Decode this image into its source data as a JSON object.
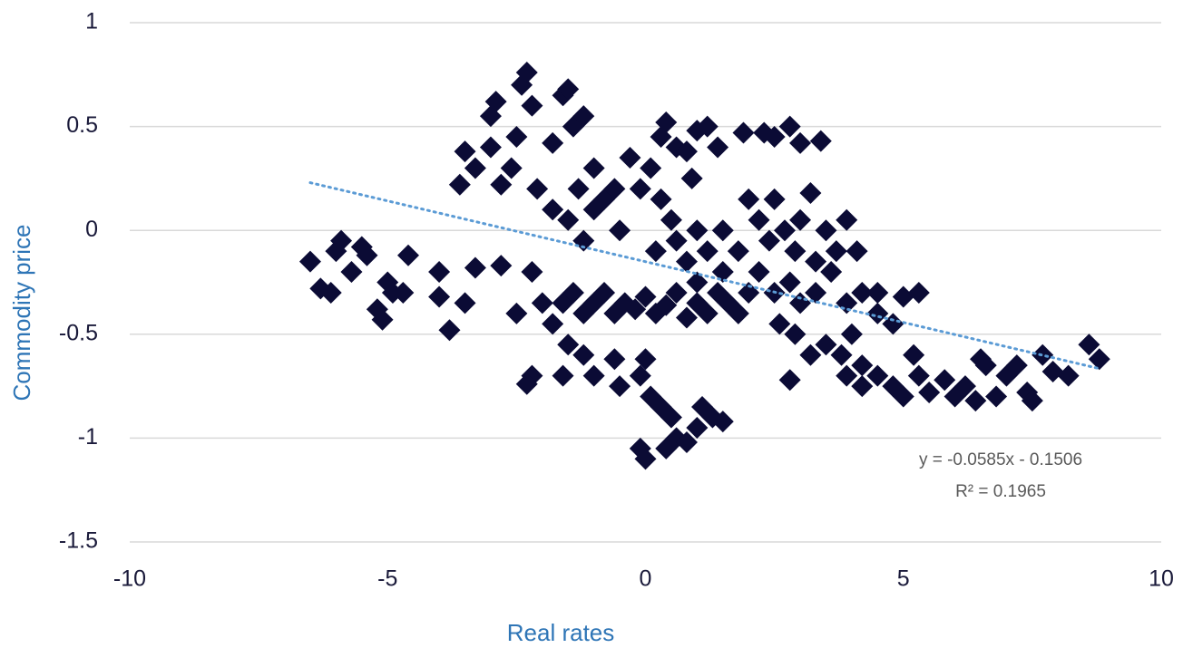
{
  "chart_data": {
    "type": "scatter",
    "x_label": "Real rates",
    "y_label": "Commodity price",
    "xlim": [
      -10,
      10
    ],
    "xticks": [
      -10,
      -5,
      0,
      5,
      10
    ],
    "ylim": [
      -1.5,
      1
    ],
    "yticks": [
      -1.5,
      -1,
      -0.5,
      0,
      0.5,
      1
    ],
    "grid": true,
    "color": "#0b0b35",
    "trendline": {
      "equation": "y = -0.0585x - 0.1506",
      "r_squared": "R² = 0.1965",
      "slope": -0.0585,
      "intercept": -0.1506,
      "color": "#5b9bd5"
    },
    "x": [
      -6.5,
      -6.3,
      -6.1,
      -6,
      -5.9,
      -5.7,
      -5.5,
      -5.4,
      -5.2,
      -5.1,
      -5,
      -4.9,
      -4.7,
      -4.6,
      -4,
      -4,
      -3.8,
      -3.5,
      -3.3,
      -2.8,
      -2.5,
      -3.6,
      -3.5,
      -3.3,
      -3,
      -3,
      -2.9,
      -2.8,
      -2.6,
      -2.5,
      -2.4,
      -2.3,
      -2.2,
      -2.1,
      -1.8,
      -1.6,
      -1.5,
      -1.4,
      -1.2,
      -1.8,
      -1.5,
      -1.3,
      -1,
      -0.8,
      -0.6,
      -1.2,
      -1,
      -0.5,
      -0.3,
      -0.1,
      0.1,
      0.3,
      0.4,
      0.6,
      0.8,
      1,
      1.2,
      1.4,
      0.9,
      0.5,
      0.3,
      -2.2,
      -2,
      -1.8,
      -1.6,
      -1.4,
      -1.2,
      -1,
      -0.8,
      -0.6,
      -0.4,
      -0.2,
      0,
      0.2,
      0.4,
      0.6,
      0.8,
      1,
      1.2,
      1.4,
      1.6,
      1.8,
      2,
      -1.5,
      -1.2,
      -1,
      -1.6,
      -2.2,
      -2.3,
      -0.6,
      -0.5,
      -0.1,
      0,
      0.1,
      0.3,
      0.5,
      0.6,
      0.4,
      0.8,
      1,
      1.1,
      1.3,
      1.5,
      -0.1,
      0,
      1.5,
      1.8,
      2,
      2.2,
      2.4,
      2.5,
      2.7,
      2.9,
      3,
      3.2,
      3.3,
      3.5,
      3.7,
      3.9,
      4.1,
      2.2,
      2.5,
      2.8,
      3,
      3.3,
      3.6,
      3.9,
      4.2,
      4.5,
      2.3,
      2.5,
      2.8,
      3,
      3.4,
      1.9,
      2.6,
      2.9,
      3.2,
      3.5,
      3.8,
      4,
      4.2,
      2.8,
      4.5,
      4.8,
      5,
      5.3,
      4.5,
      4.8,
      5,
      5.3,
      5.5,
      5.8,
      6,
      6.2,
      6.4,
      6.6,
      6.8,
      7,
      7.2,
      7.4,
      7.5,
      7.7,
      7.9,
      8.2,
      8.6,
      8.8,
      4.2,
      3.9,
      5.2,
      6.5,
      0.2,
      0.6,
      1,
      1.2,
      0.8,
      1.5,
      1
    ],
    "y": [
      -0.15,
      -0.28,
      -0.3,
      -0.1,
      -0.05,
      -0.2,
      -0.08,
      -0.12,
      -0.38,
      -0.43,
      -0.25,
      -0.3,
      -0.3,
      -0.12,
      -0.2,
      -0.32,
      -0.48,
      -0.35,
      -0.18,
      -0.17,
      -0.4,
      0.22,
      0.38,
      0.3,
      0.4,
      0.55,
      0.62,
      0.22,
      0.3,
      0.45,
      0.7,
      0.76,
      0.6,
      0.2,
      0.42,
      0.65,
      0.68,
      0.5,
      0.55,
      0.1,
      0.05,
      0.2,
      0.3,
      0.15,
      0.2,
      -0.05,
      0.1,
      0,
      0.35,
      0.2,
      0.3,
      0.45,
      0.52,
      0.4,
      0.38,
      0.48,
      0.5,
      0.4,
      0.25,
      0.05,
      0.15,
      -0.2,
      -0.35,
      -0.45,
      -0.35,
      -0.3,
      -0.4,
      -0.35,
      -0.3,
      -0.4,
      -0.35,
      -0.38,
      -0.32,
      -0.4,
      -0.36,
      -0.3,
      -0.42,
      -0.35,
      -0.4,
      -0.3,
      -0.35,
      -0.4,
      -0.3,
      -0.55,
      -0.6,
      -0.7,
      -0.7,
      -0.7,
      -0.74,
      -0.62,
      -0.75,
      -0.7,
      -0.62,
      -0.8,
      -0.85,
      -0.9,
      -1,
      -1.05,
      -1.02,
      -0.95,
      -0.85,
      -0.9,
      -0.92,
      -1.05,
      -1.1,
      0,
      -0.1,
      0.15,
      0.05,
      -0.05,
      0.15,
      0,
      -0.1,
      0.05,
      0.18,
      -0.15,
      0,
      -0.1,
      0.05,
      -0.1,
      -0.2,
      -0.3,
      -0.25,
      -0.35,
      -0.3,
      -0.2,
      -0.35,
      -0.3,
      -0.3,
      0.47,
      0.45,
      0.5,
      0.42,
      0.43,
      0.47,
      -0.45,
      -0.5,
      -0.6,
      -0.55,
      -0.6,
      -0.5,
      -0.65,
      -0.72,
      -0.4,
      -0.45,
      -0.32,
      -0.3,
      -0.7,
      -0.75,
      -0.8,
      -0.7,
      -0.78,
      -0.72,
      -0.8,
      -0.75,
      -0.82,
      -0.65,
      -0.8,
      -0.7,
      -0.65,
      -0.78,
      -0.82,
      -0.6,
      -0.68,
      -0.7,
      -0.55,
      -0.62,
      -0.75,
      -0.7,
      -0.6,
      -0.62,
      -0.1,
      -0.05,
      0,
      -0.1,
      -0.15,
      -0.2,
      -0.25
    ]
  }
}
